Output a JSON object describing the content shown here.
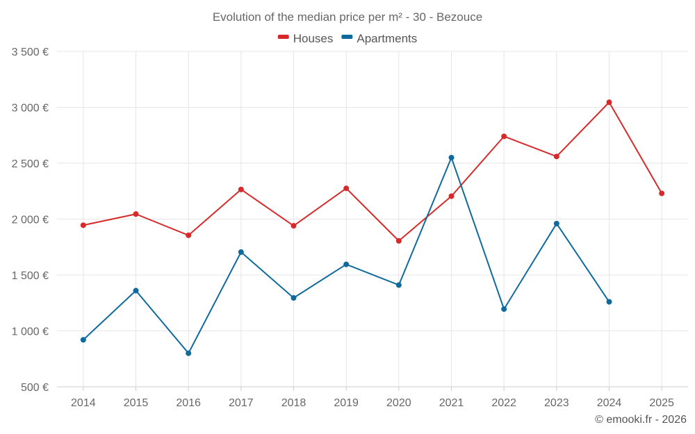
{
  "chart_data": {
    "type": "line",
    "title": "Evolution of the median price per m² - 30 - Bezouce",
    "categories": [
      "2014",
      "2015",
      "2016",
      "2017",
      "2018",
      "2019",
      "2020",
      "2021",
      "2022",
      "2023",
      "2024",
      "2025"
    ],
    "series": [
      {
        "name": "Houses",
        "color": "#d62a2a",
        "values": [
          1945,
          2045,
          1855,
          2265,
          1940,
          2275,
          1805,
          2205,
          2740,
          2560,
          3045,
          2230
        ]
      },
      {
        "name": "Apartments",
        "color": "#0e6a9c",
        "values": [
          920,
          1360,
          800,
          1705,
          1295,
          1595,
          1410,
          2550,
          1195,
          1960,
          1260,
          null
        ]
      }
    ],
    "ylim": [
      500,
      3500
    ],
    "yticks": [
      500,
      1000,
      1500,
      2000,
      2500,
      3000,
      3500
    ],
    "ytick_labels": [
      "500 €",
      "1 000 €",
      "1 500 €",
      "2 000 €",
      "2 500 €",
      "3 000 €",
      "3 500 €"
    ],
    "grid": true,
    "legend_position": "top-center",
    "xlabel": "",
    "ylabel": "",
    "credit": "© emooki.fr - 2026"
  }
}
